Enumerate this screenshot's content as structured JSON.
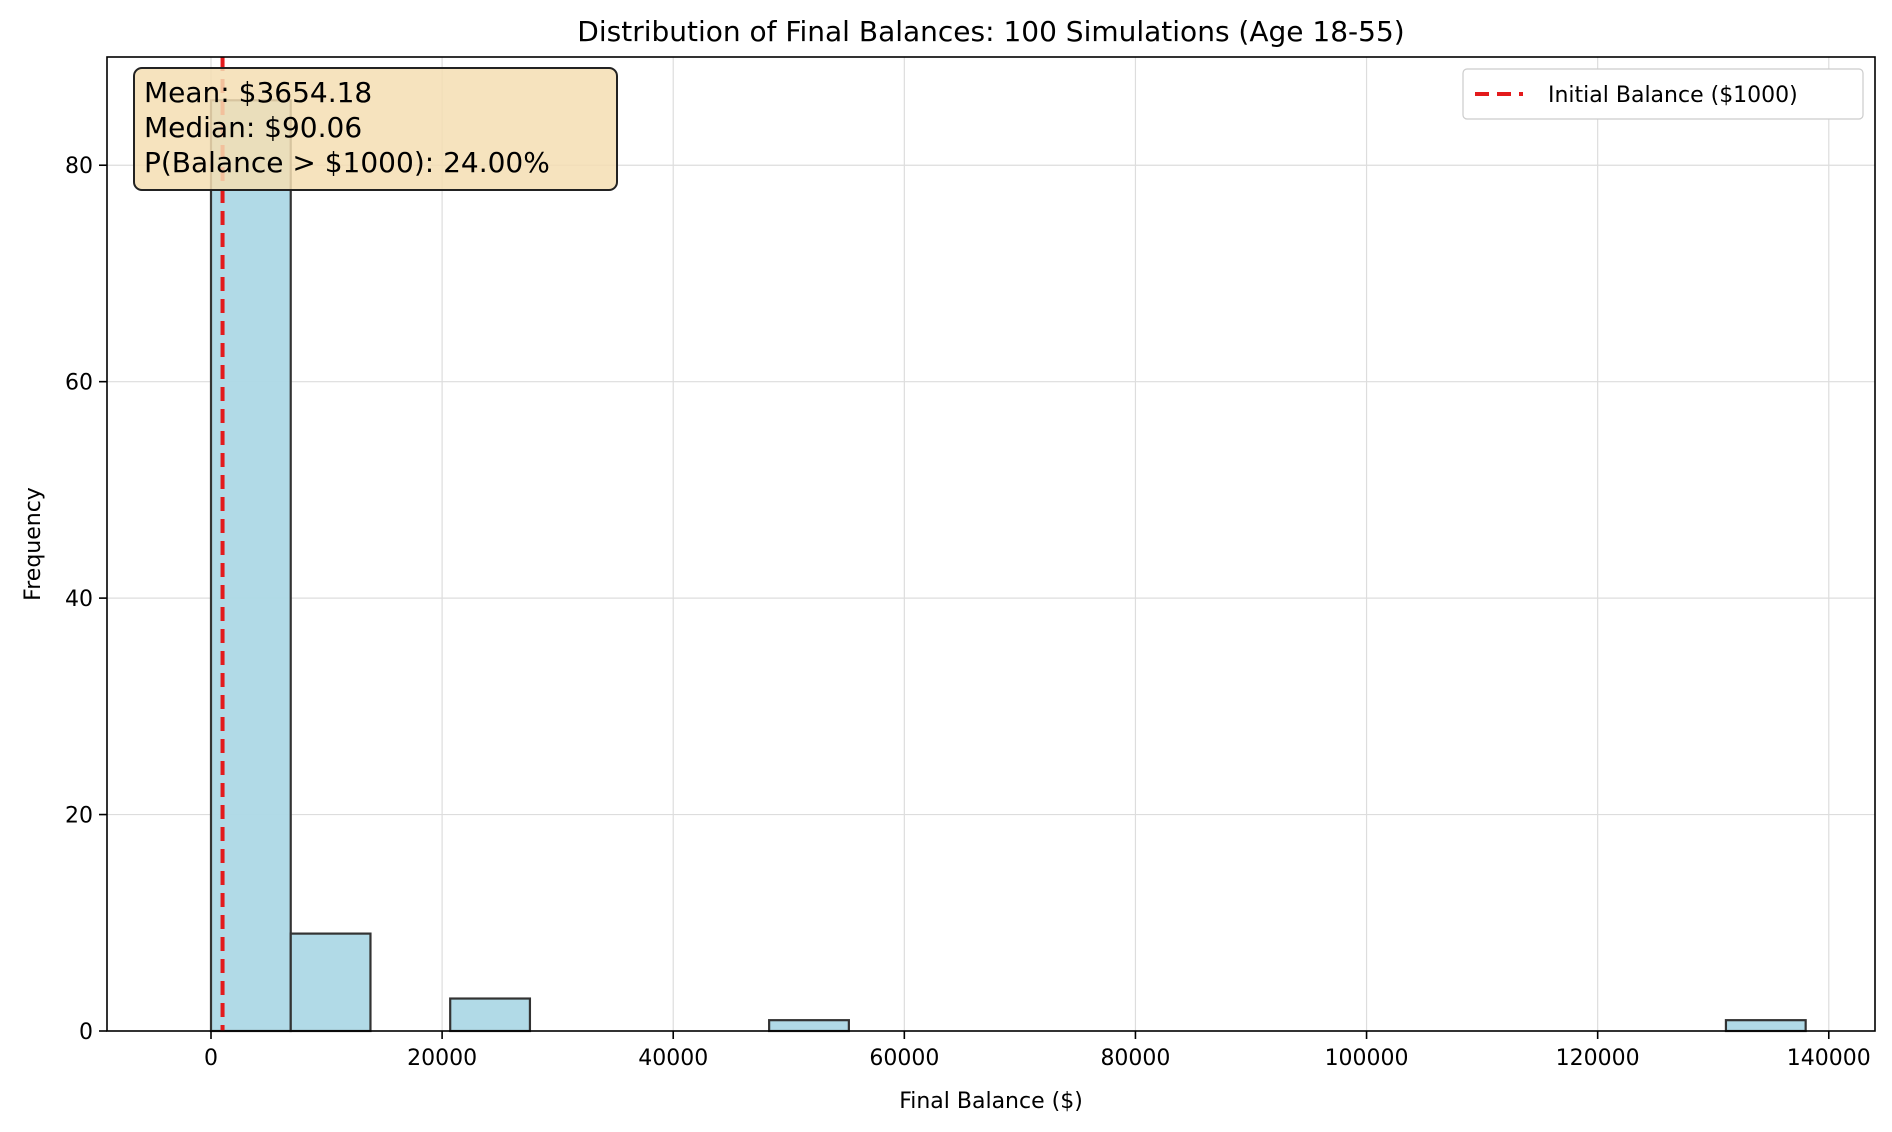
{
  "chart_data": {
    "type": "bar",
    "title": "Distribution of Final Balances: 100 Simulations (Age 18-55)",
    "xlabel": "Final Balance ($)",
    "ylabel": "Frequency",
    "xlim": [
      -9000,
      144000
    ],
    "ylim": [
      0,
      90
    ],
    "xticks": [
      0,
      20000,
      40000,
      60000,
      80000,
      100000,
      120000,
      140000
    ],
    "yticks": [
      0,
      20,
      40,
      60,
      80
    ],
    "grid": true,
    "bins": [
      {
        "start": 0,
        "end": 6900,
        "count": 86
      },
      {
        "start": 6900,
        "end": 13800,
        "count": 9
      },
      {
        "start": 20700,
        "end": 27600,
        "count": 3
      },
      {
        "start": 48300,
        "end": 55200,
        "count": 1
      },
      {
        "start": 131100,
        "end": 138000,
        "count": 1
      }
    ],
    "bar_color": "#add8e6",
    "bar_edge_color": "#333333",
    "reference_line": {
      "x": 1000,
      "label": "Initial Balance ($1000)",
      "color": "#e31a1c",
      "style": "dashed"
    },
    "legend": {
      "placement": "top-right",
      "entries": [
        "Initial Balance ($1000)"
      ]
    },
    "stats_box": {
      "lines": [
        "Mean: $3654.18",
        "Median: $90.06",
        "P(Balance > $1000): 24.00%"
      ],
      "background": "#f5deb3"
    }
  }
}
